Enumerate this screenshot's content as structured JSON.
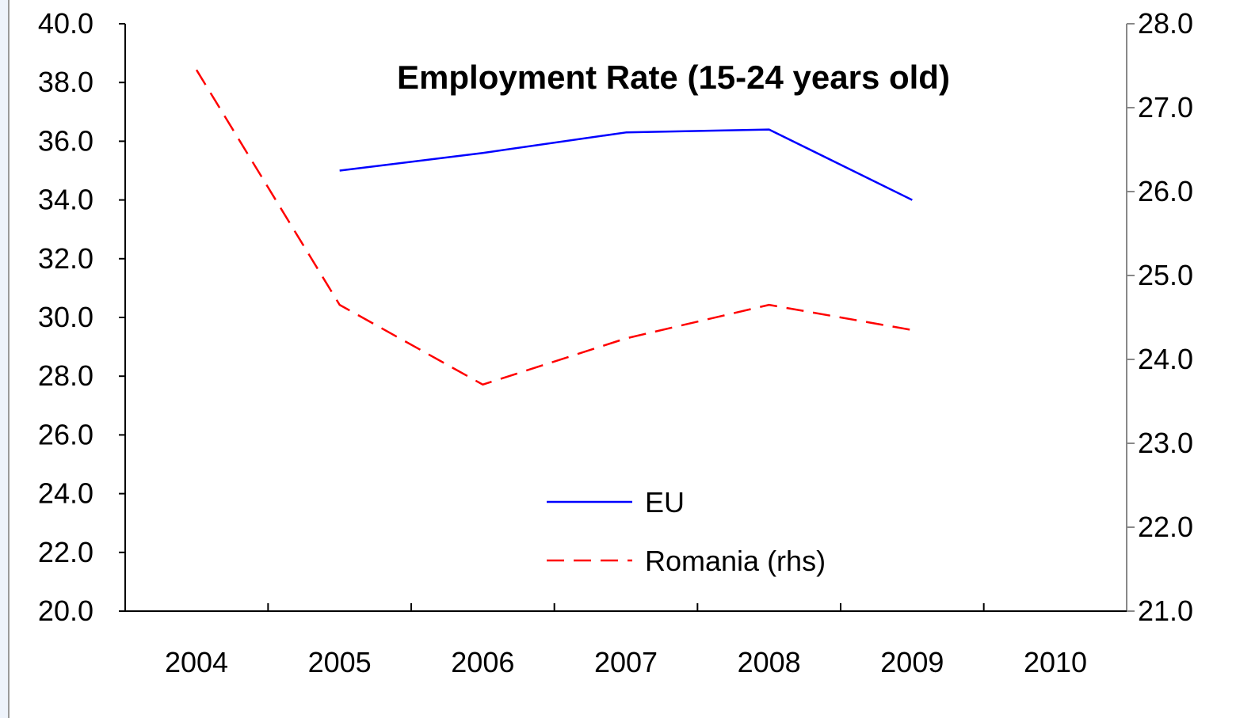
{
  "chart_data": {
    "type": "line",
    "title": "Employment Rate (15-24 years old)",
    "xlabel": "",
    "ylabel": "",
    "y2label": "",
    "categories": [
      "2004",
      "2005",
      "2006",
      "2007",
      "2008",
      "2009",
      "2010"
    ],
    "y_ticks": [
      "20.0",
      "22.0",
      "24.0",
      "26.0",
      "28.0",
      "30.0",
      "32.0",
      "34.0",
      "36.0",
      "38.0",
      "40.0"
    ],
    "y2_ticks": [
      "21.0",
      "22.0",
      "23.0",
      "24.0",
      "25.0",
      "26.0",
      "27.0",
      "28.0"
    ],
    "ylim": [
      20,
      40
    ],
    "y2lim": [
      21,
      28
    ],
    "grid": false,
    "legend_position": "bottom-center",
    "series": [
      {
        "name": "EU",
        "axis": "left",
        "style": "solid",
        "color": "#0000ff",
        "values": [
          null,
          35.0,
          35.6,
          36.3,
          36.4,
          34.0,
          null
        ]
      },
      {
        "name": "Romania (rhs)",
        "axis": "right",
        "style": "dashed",
        "color": "#ff0000",
        "values": [
          27.45,
          24.65,
          23.7,
          24.25,
          24.65,
          24.35,
          null
        ]
      }
    ]
  }
}
